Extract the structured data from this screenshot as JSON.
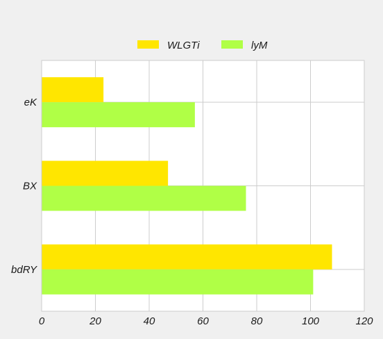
{
  "chart_data": {
    "type": "bar",
    "orientation": "horizontal",
    "categories": [
      "eK",
      "BX",
      "bdRY"
    ],
    "series": [
      {
        "name": "WLGTi",
        "color": "#ffe600",
        "values": [
          23,
          47,
          108
        ]
      },
      {
        "name": "lyM",
        "color": "#b0ff46",
        "values": [
          57,
          76,
          101
        ]
      }
    ],
    "xlim": [
      0,
      120
    ],
    "xticks": [
      0,
      20,
      40,
      60,
      80,
      100,
      120
    ],
    "grid": true,
    "legend_position": "top-center"
  }
}
